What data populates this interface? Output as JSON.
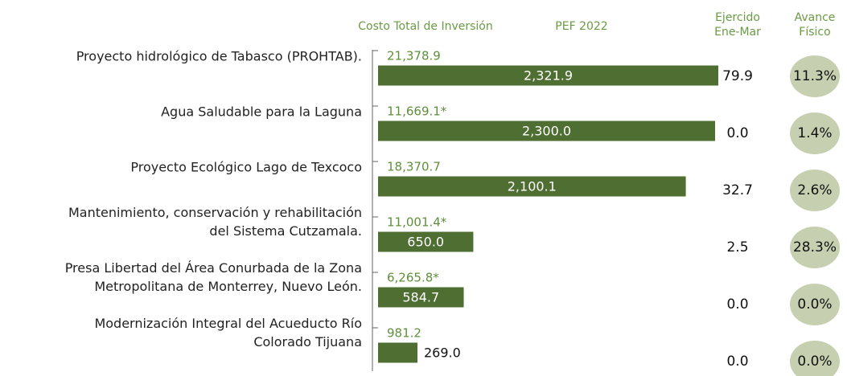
{
  "chart_data": {
    "type": "bar",
    "orientation": "horizontal",
    "categories": [
      [
        "Proyecto hidrológico de Tabasco (PROHTAB)."
      ],
      [
        "Agua Saludable para la Laguna"
      ],
      [
        "Proyecto Ecológico Lago de Texcoco"
      ],
      [
        "Mantenimiento, conservación y rehabilitación",
        "del Sistema Cutzamala."
      ],
      [
        "Presa Libertad del Área Conurbada de la Zona",
        "Metropolitana de Monterrey, Nuevo León."
      ],
      [
        "Modernización Integral del Acueducto Río",
        "Colorado Tijuana"
      ]
    ],
    "series": [
      {
        "name": "PEF 2022",
        "color": "#4e6e32",
        "values": [
          2321.9,
          2300.0,
          2100.1,
          650.0,
          584.7,
          269.0
        ],
        "value_labels": [
          "2,321.9",
          "2,300.0",
          "2,100.1",
          "650.0",
          "584.7",
          "269.0"
        ]
      }
    ],
    "xlim": [
      0,
      2321.9
    ],
    "costo_total": {
      "name": "Costo Total de Inversión",
      "values": [
        21378.9,
        11669.1,
        18370.7,
        11001.4,
        6265.8,
        981.2
      ],
      "value_labels": [
        "21,378.9",
        "11,669.1*",
        "18,370.7",
        "11,001.4*",
        "6,265.8*",
        "981.2"
      ]
    },
    "ejercido": {
      "name": [
        "Ejercido",
        "Ene-Mar"
      ],
      "values": [
        79.9,
        0.0,
        32.7,
        2.5,
        0.0,
        0.0
      ],
      "value_labels": [
        "79.9",
        "0.0",
        "32.7",
        "2.5",
        "0.0",
        "0.0"
      ]
    },
    "avance": {
      "name": [
        "Avance",
        "Físico"
      ],
      "color": "#c6d0b0",
      "values": [
        11.3,
        1.4,
        2.6,
        28.3,
        0.0,
        0.0
      ],
      "value_labels": [
        "11.3%",
        "1.4%",
        "2.6%",
        "28.3%",
        "0.0%",
        "0.0%"
      ]
    }
  }
}
